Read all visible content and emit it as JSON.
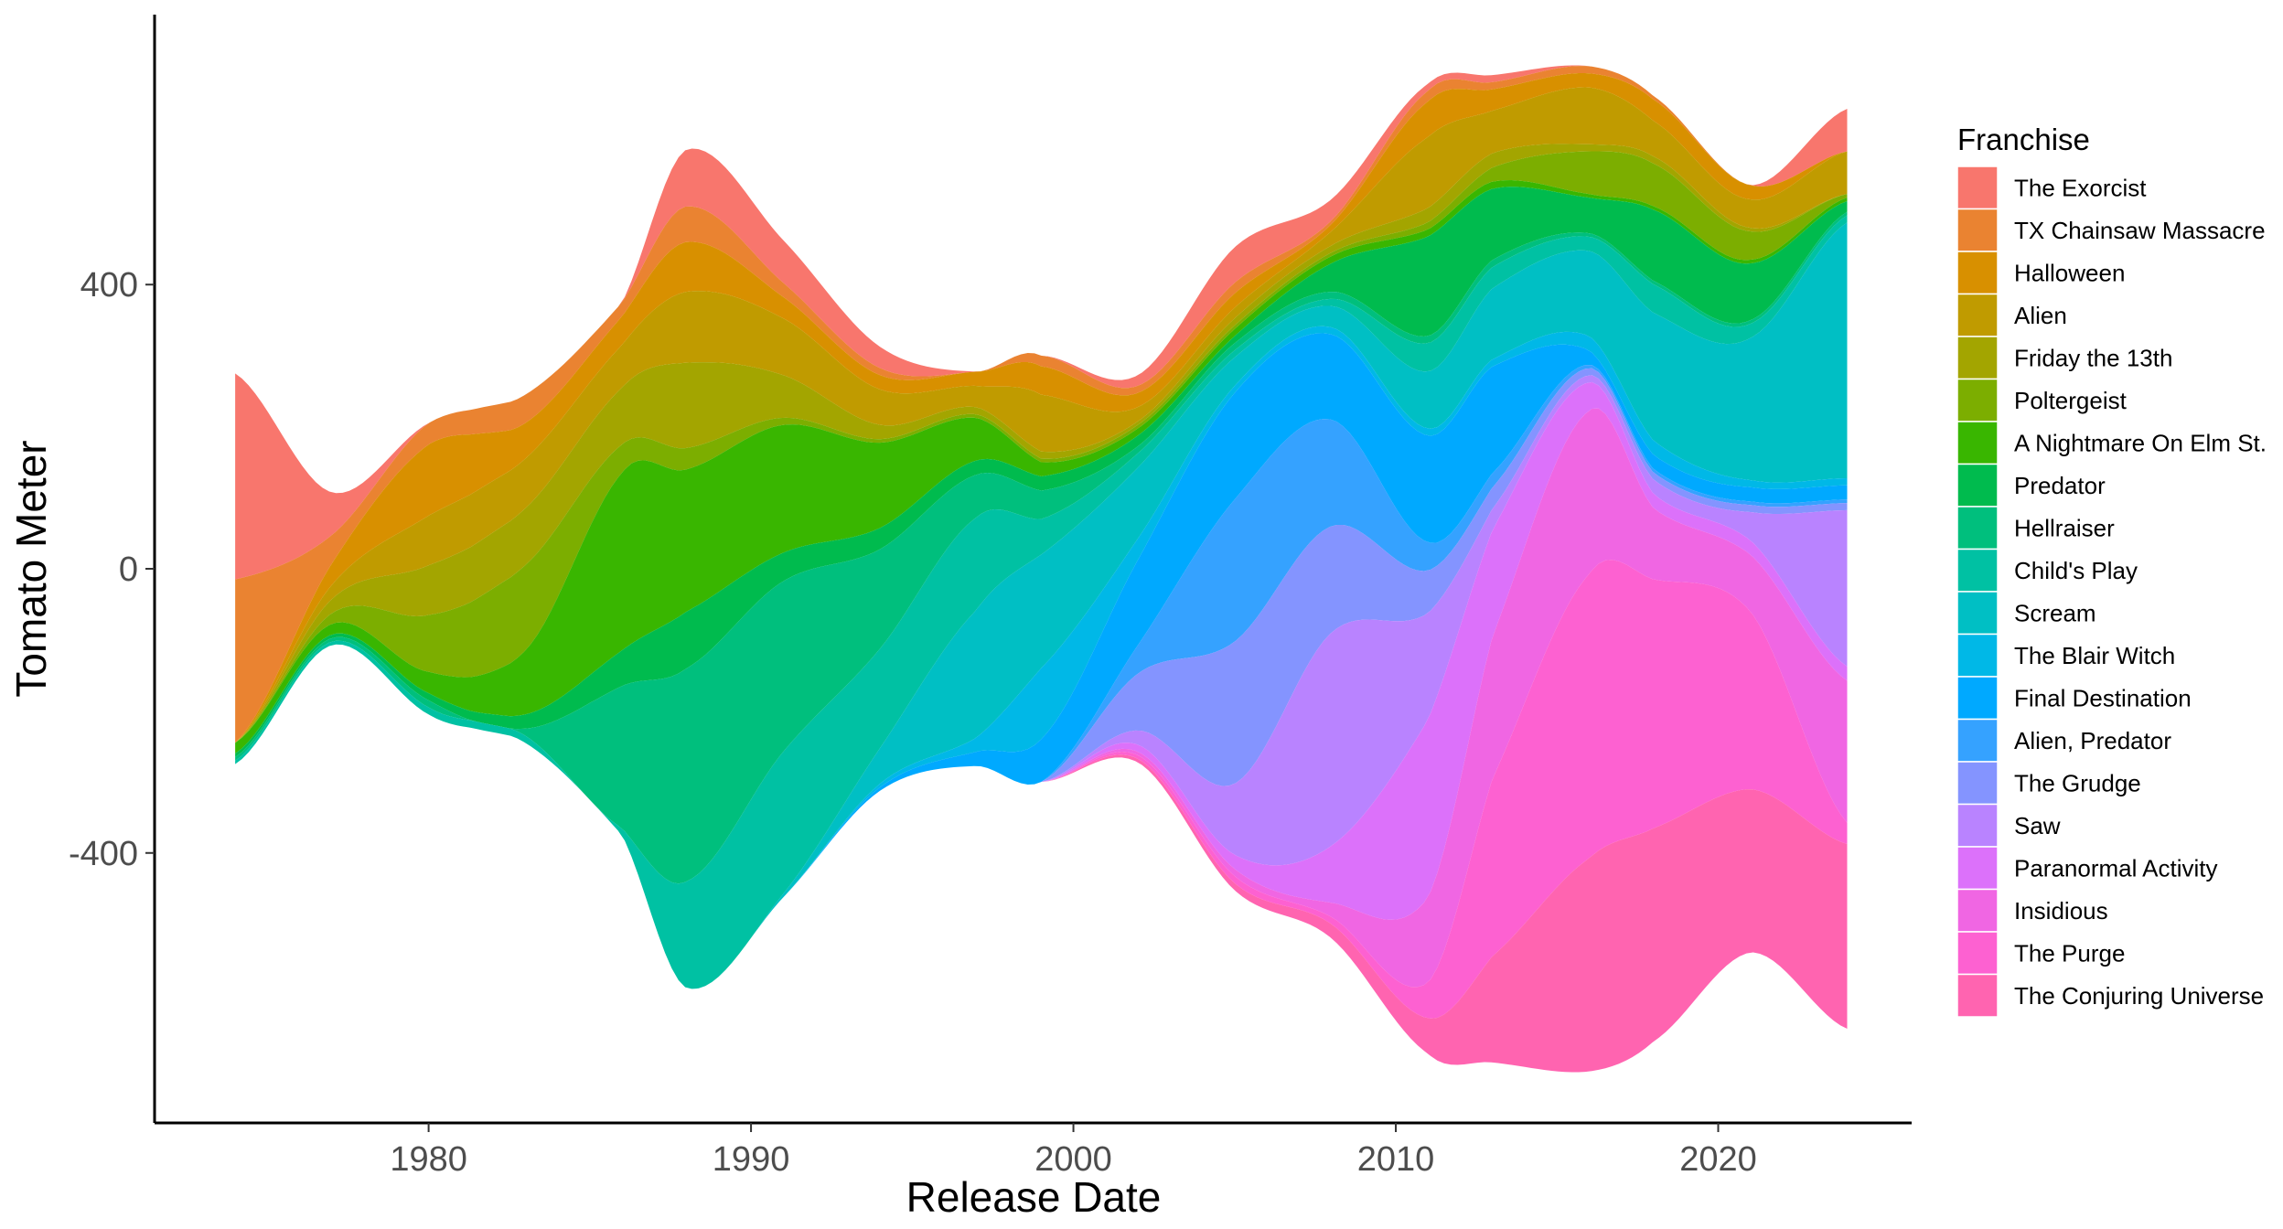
{
  "chart_data": {
    "type": "area",
    "subtype": "streamgraph",
    "xlabel": "Release Date",
    "ylabel": "Tomato Meter",
    "xlim": [
      1971.5,
      2026
    ],
    "ylim": [
      -780,
      780
    ],
    "x_ticks": [
      1980,
      1990,
      2000,
      2010,
      2020
    ],
    "x_tick_labels": [
      "1980",
      "1990",
      "2000",
      "2010",
      "2020"
    ],
    "y_ticks": [
      400,
      0,
      -400
    ],
    "y_tick_labels": [
      "400",
      "0",
      "-400"
    ],
    "grid": false,
    "legend": {
      "title": "Franchise",
      "position": "right"
    },
    "x": [
      1974,
      1977,
      1980,
      1983,
      1986,
      1988,
      1991,
      1994,
      1997,
      1999,
      2002,
      2005,
      2008,
      2011,
      2013,
      2016,
      2018,
      2021,
      2024
    ],
    "series": [
      {
        "name": "The Exorcist",
        "color": "#F8766D",
        "values": [
          290,
          60,
          0,
          0,
          0,
          80,
          60,
          30,
          0,
          0,
          15,
          50,
          30,
          10,
          10,
          0,
          0,
          0,
          60
        ]
      },
      {
        "name": "TX Chainsaw Massacre",
        "color": "#EA8331",
        "values": [
          230,
          40,
          30,
          40,
          20,
          50,
          20,
          10,
          0,
          15,
          10,
          15,
          5,
          15,
          10,
          10,
          5,
          0,
          0
        ]
      },
      {
        "name": "Halloween",
        "color": "#D89000",
        "values": [
          0,
          30,
          100,
          50,
          40,
          70,
          30,
          20,
          20,
          40,
          20,
          20,
          10,
          50,
          30,
          20,
          30,
          20,
          0
        ]
      },
      {
        "name": "Alien",
        "color": "#C09B00",
        "values": [
          0,
          20,
          70,
          70,
          60,
          100,
          80,
          50,
          30,
          80,
          20,
          15,
          20,
          100,
          60,
          80,
          50,
          40,
          60
        ]
      },
      {
        "name": "Friday the 13th",
        "color": "#A3A500",
        "values": [
          0,
          20,
          70,
          80,
          80,
          120,
          60,
          20,
          10,
          10,
          5,
          10,
          10,
          20,
          20,
          10,
          10,
          5,
          0
        ]
      },
      {
        "name": "Poltergeist",
        "color": "#7CAE00",
        "values": [
          0,
          15,
          80,
          120,
          40,
          30,
          10,
          5,
          5,
          5,
          5,
          5,
          5,
          10,
          20,
          60,
          60,
          40,
          5
        ]
      },
      {
        "name": "A Nightmare On Elm St.",
        "color": "#39B600",
        "values": [
          15,
          15,
          30,
          90,
          250,
          200,
          180,
          120,
          60,
          20,
          10,
          10,
          10,
          10,
          10,
          5,
          5,
          5,
          5
        ]
      },
      {
        "name": "Predator",
        "color": "#00BB4E",
        "values": [
          5,
          5,
          10,
          20,
          50,
          80,
          40,
          30,
          20,
          20,
          15,
          10,
          40,
          140,
          100,
          50,
          100,
          80,
          15
        ]
      },
      {
        "name": "Hellraiser",
        "color": "#00BF7D",
        "values": [
          5,
          5,
          10,
          10,
          200,
          300,
          240,
          140,
          60,
          40,
          10,
          10,
          10,
          10,
          10,
          5,
          5,
          5,
          5
        ]
      },
      {
        "name": "Child's Play",
        "color": "#00C1A3",
        "values": [
          5,
          5,
          10,
          10,
          10,
          150,
          200,
          140,
          130,
          50,
          20,
          10,
          10,
          40,
          30,
          20,
          40,
          20,
          10
        ]
      },
      {
        "name": "Scream",
        "color": "#00BFC4",
        "values": [
          0,
          0,
          0,
          0,
          0,
          0,
          5,
          50,
          180,
          160,
          100,
          40,
          30,
          80,
          100,
          120,
          180,
          200,
          360
        ]
      },
      {
        "name": "The Blair Witch",
        "color": "#00B8E7",
        "values": [
          0,
          0,
          0,
          0,
          0,
          0,
          0,
          5,
          20,
          100,
          30,
          10,
          10,
          10,
          10,
          20,
          20,
          10,
          10
        ]
      },
      {
        "name": "Final Destination",
        "color": "#00A9FF",
        "values": [
          0,
          0,
          0,
          0,
          0,
          0,
          0,
          5,
          20,
          60,
          120,
          150,
          120,
          150,
          150,
          20,
          20,
          20,
          20
        ]
      },
      {
        "name": "Alien, Predator",
        "color": "#35A2FF",
        "values": [
          0,
          0,
          0,
          0,
          0,
          0,
          0,
          0,
          0,
          0,
          40,
          200,
          150,
          40,
          20,
          5,
          5,
          5,
          5
        ]
      },
      {
        "name": "The Grudge",
        "color": "#8494FF",
        "values": [
          0,
          0,
          0,
          0,
          0,
          0,
          0,
          0,
          0,
          0,
          80,
          200,
          150,
          60,
          30,
          10,
          10,
          10,
          10
        ]
      },
      {
        "name": "Saw",
        "color": "#B983FF",
        "values": [
          0,
          0,
          0,
          0,
          0,
          0,
          0,
          0,
          0,
          0,
          20,
          100,
          300,
          150,
          30,
          10,
          20,
          40,
          220
        ]
      },
      {
        "name": "Paranormal Activity",
        "color": "#DC71FA",
        "values": [
          0,
          0,
          0,
          0,
          0,
          0,
          0,
          0,
          0,
          0,
          10,
          20,
          80,
          250,
          150,
          40,
          20,
          20,
          20
        ]
      },
      {
        "name": "Insidious",
        "color": "#F066E3",
        "values": [
          0,
          0,
          0,
          0,
          0,
          0,
          0,
          0,
          0,
          0,
          5,
          10,
          20,
          120,
          200,
          230,
          100,
          80,
          200
        ]
      },
      {
        "name": "The Purge",
        "color": "#FD61D1",
        "values": [
          0,
          0,
          0,
          0,
          0,
          0,
          0,
          0,
          0,
          0,
          5,
          10,
          10,
          50,
          250,
          400,
          350,
          250,
          30
        ]
      },
      {
        "name": "The Conjuring Universe",
        "color": "#FF64B0",
        "values": [
          0,
          0,
          0,
          0,
          0,
          0,
          0,
          0,
          0,
          0,
          5,
          10,
          20,
          50,
          150,
          300,
          300,
          230,
          260
        ]
      }
    ]
  }
}
